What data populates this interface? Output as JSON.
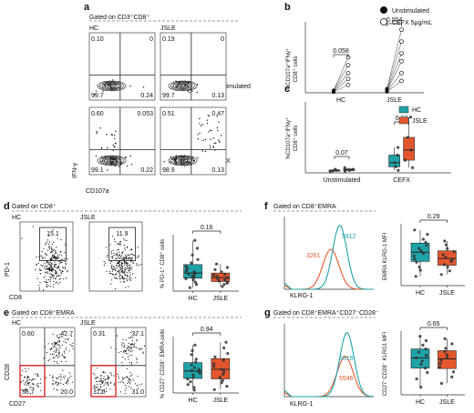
{
  "panel_a": {
    "letter": "a",
    "gate": "Gated on CD3⁺CD8⁺",
    "col_labels": [
      "HC",
      "JSLE"
    ],
    "row_labels": [
      "Unstimulated",
      "CEFX"
    ],
    "x_axis": "CD107a",
    "y_axis": "IFN-γ",
    "plots": [
      {
        "tl": "0.10",
        "tr": "0",
        "bl": "99.7",
        "br": "0.24"
      },
      {
        "tl": "0.19",
        "tr": "0",
        "bl": "99.7",
        "br": "0.13"
      },
      {
        "tl": "0.60",
        "tr": "0.053",
        "bl": "99.1",
        "br": "0.22"
      },
      {
        "tl": "0.51",
        "tr": "0.47",
        "bl": "98.9",
        "br": "0.13"
      }
    ]
  },
  "legend": {
    "items": [
      {
        "label": "Unstimulated",
        "color": "#111111"
      },
      {
        "label": "CEFX 5μg/mL",
        "color": "#ffffff"
      }
    ]
  },
  "panel_b": {
    "letter": "b",
    "ylabel_1": "%CD107a⁺IFNγ⁺",
    "ylabel_2": "CD8⁺ cells",
    "groups": [
      "HC",
      "JSLE"
    ],
    "p_values": [
      "0.058",
      "0.004"
    ]
  },
  "panel_c": {
    "letter": "c",
    "ylabel_1": "%CD107a⁺IFNγ⁺",
    "ylabel_2": "CD8⁺ cells",
    "groups": [
      "Unstimulated",
      "CEFX"
    ],
    "p_values": [
      "0.07",
      "0.02"
    ],
    "legend": [
      {
        "label": "HC",
        "color": "#1fa3a8"
      },
      {
        "label": "JSLE",
        "color": "#e4572e"
      }
    ]
  },
  "panel_d": {
    "letter": "d",
    "gate": "Gated on CD8⁺",
    "col_labels": [
      "HC",
      "JSLE"
    ],
    "x_axis": "CD8",
    "y_axis": "PD-1",
    "gate_values": [
      "15.1",
      "11.9"
    ],
    "box_ylabel": "% PD-1⁺ CD8⁺ cells",
    "groups": [
      "HC",
      "JSLE"
    ],
    "p_value": "0.16"
  },
  "panel_e": {
    "letter": "e",
    "gate": "Gated on CD8⁺EMRA",
    "col_labels": [
      "HC",
      "JSLE"
    ],
    "x_axis": "CD27",
    "y_axis": "CD28",
    "plots": [
      {
        "tl": "0.60",
        "tr": "42.7",
        "bl": "36.7",
        "br": "20.0"
      },
      {
        "tl": "0.31",
        "tr": "37.1",
        "bl": "31.6",
        "br": "31.0"
      }
    ],
    "box_ylabel": "% CD27⁻CD28⁻ EMRA cells",
    "groups": [
      "HC",
      "JSLE"
    ],
    "p_value": "0.94"
  },
  "panel_f": {
    "letter": "f",
    "gate": "Gated on CD8⁺EMRA",
    "x_axis": "KLRG-1",
    "hc_value": "5912",
    "jsle_value": "3261",
    "box_ylabel": "EMRA KLRG-1 MFI",
    "groups": [
      "HC",
      "JSLE"
    ],
    "p_value": "0.29"
  },
  "panel_g": {
    "letter": "g",
    "gate": "Gated on CD8⁺EMRA⁺CD27⁻CD28⁻",
    "x_axis": "KLRG-1",
    "hc_value": "6516",
    "jsle_value": "5546",
    "box_ylabel": "CD27⁻CD28⁻ KLRG1 MFI",
    "groups": [
      "HC",
      "JSLE"
    ],
    "p_value": "0.65"
  },
  "colors": {
    "hc": "#1fa3a8",
    "jsle": "#e4572e",
    "gate_red": "#d62728"
  },
  "chart_data": [
    {
      "type": "scatter",
      "panel": "b",
      "categories": [
        "HC",
        "JSLE"
      ],
      "series": [
        {
          "name": "Unstimulated",
          "values": [
            [
              0.02,
              0.03,
              0.04,
              0.05,
              0.06
            ],
            [
              0.03,
              0.04,
              0.05,
              0.06,
              0.08,
              0.1
            ]
          ]
        },
        {
          "name": "CEFX 5μg/mL",
          "values": [
            [
              0.2,
              0.35,
              0.5,
              0.7,
              0.9
            ],
            [
              0.3,
              0.5,
              0.8,
              1.0,
              1.3,
              1.6
            ]
          ]
        }
      ]
    },
    {
      "type": "box",
      "panel": "c",
      "categories": [
        "Unstimulated",
        "CEFX"
      ],
      "series": [
        {
          "name": "HC",
          "values": [
            [
              0.02,
              0.04,
              0.05,
              0.07
            ],
            [
              0.05,
              0.12,
              0.2,
              0.35,
              0.5
            ]
          ]
        },
        {
          "name": "JSLE",
          "values": [
            [
              0.03,
              0.05,
              0.07,
              0.1
            ],
            [
              0.1,
              0.25,
              0.45,
              0.7,
              1.1
            ]
          ]
        }
      ]
    },
    {
      "type": "box",
      "panel": "d",
      "categories": [
        "HC",
        "JSLE"
      ],
      "ylim": [
        0,
        50
      ],
      "series": [
        {
          "name": "HC",
          "values": [
            3,
            6,
            8,
            10,
            11,
            12,
            13,
            14,
            15,
            16,
            17,
            18,
            20,
            22,
            25,
            28,
            32,
            38,
            45
          ]
        },
        {
          "name": "JSLE",
          "values": [
            4,
            6,
            7,
            8,
            9,
            10,
            11,
            12,
            13,
            14,
            15,
            17,
            19,
            21,
            24
          ]
        }
      ]
    },
    {
      "type": "box",
      "panel": "e",
      "categories": [
        "HC",
        "JSLE"
      ],
      "ylim": [
        0,
        100
      ],
      "series": [
        {
          "name": "HC",
          "values": [
            5,
            10,
            15,
            20,
            25,
            28,
            32,
            35,
            38,
            40,
            42,
            45,
            50,
            55,
            60,
            68,
            75,
            85
          ]
        },
        {
          "name": "JSLE",
          "values": [
            6,
            12,
            18,
            22,
            28,
            33,
            38,
            42,
            47,
            52,
            58,
            64,
            70,
            80,
            90
          ]
        }
      ]
    },
    {
      "type": "box",
      "panel": "f",
      "categories": [
        "HC",
        "JSLE"
      ],
      "ylim": [
        0,
        10000
      ],
      "series": [
        {
          "name": "HC",
          "values": [
            1500,
            2500,
            3000,
            3800,
            4300,
            4800,
            5200,
            5600,
            6000,
            6500,
            7000,
            7500,
            8300,
            9000
          ]
        },
        {
          "name": "JSLE",
          "values": [
            1800,
            2400,
            3000,
            3400,
            3900,
            4200,
            4600,
            5000,
            5500,
            6000,
            6600,
            7200
          ]
        }
      ]
    },
    {
      "type": "box",
      "panel": "g",
      "categories": [
        "HC",
        "JSLE"
      ],
      "ylim": [
        0,
        10000
      ],
      "series": [
        {
          "name": "HC",
          "values": [
            1200,
            2500,
            3500,
            4200,
            4800,
            5300,
            5800,
            6200,
            6700,
            7200,
            7800,
            8500,
            9200
          ]
        },
        {
          "name": "JSLE",
          "values": [
            1800,
            2800,
            3600,
            4300,
            4900,
            5400,
            5900,
            6300,
            6800,
            7300,
            8000,
            8800
          ]
        }
      ]
    }
  ]
}
